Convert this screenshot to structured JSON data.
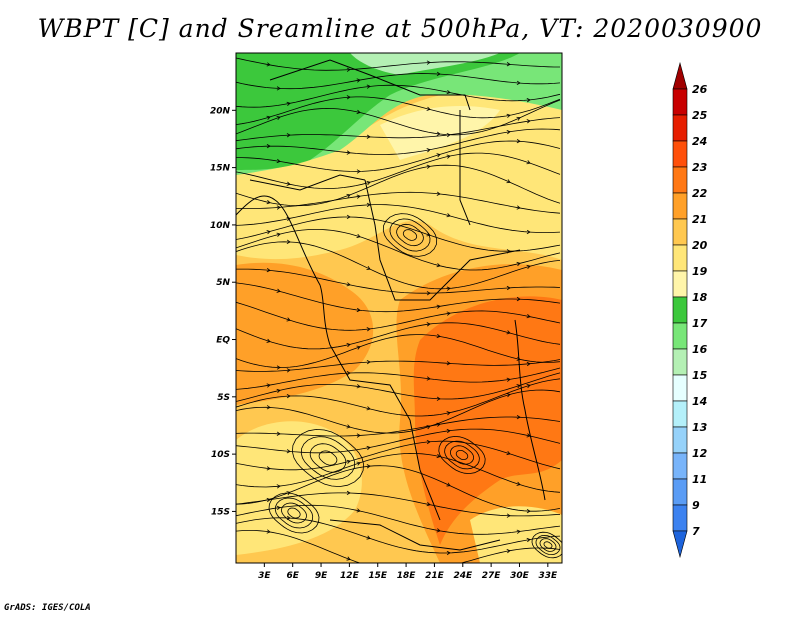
{
  "title": "WBPT [C] and Sreamline at 500hPa, VT: 2020030900",
  "footer": "GrADS: IGES/COLA",
  "map": {
    "lat_labels": [
      "20N",
      "15N",
      "10N",
      "5N",
      "EQ",
      "5S",
      "10S",
      "15S"
    ],
    "lon_labels": [
      "3E",
      "6E",
      "9E",
      "12E",
      "15E",
      "18E",
      "21E",
      "24E",
      "27E",
      "30E",
      "33E"
    ],
    "lon_range": [
      0,
      34.5
    ],
    "lat_range": [
      -19.5,
      25
    ]
  },
  "colorbar": {
    "labels": [
      "7",
      "9",
      "11",
      "12",
      "13",
      "14",
      "15",
      "16",
      "17",
      "18",
      "19",
      "20",
      "21",
      "22",
      "23",
      "24",
      "25",
      "26"
    ],
    "colors": [
      "#1e64dc",
      "#3c82f0",
      "#5a9cf5",
      "#78b4fa",
      "#96d2fa",
      "#b4f0fa",
      "#e6ffff",
      "#b4f0b4",
      "#78e678",
      "#3cc83c",
      "#fff5aa",
      "#ffe678",
      "#ffc850",
      "#ffa028",
      "#ff7814",
      "#ff500a",
      "#e61e00",
      "#c80000",
      "#a00000"
    ]
  },
  "colors": {
    "green_dark": "#3cc83c",
    "green_mid": "#78e678",
    "green_light": "#b4f0b4",
    "yellow_pale": "#fff5aa",
    "yellow": "#ffe678",
    "orange_light": "#ffc850",
    "orange": "#ffa028",
    "orange_dark": "#ff7814"
  }
}
